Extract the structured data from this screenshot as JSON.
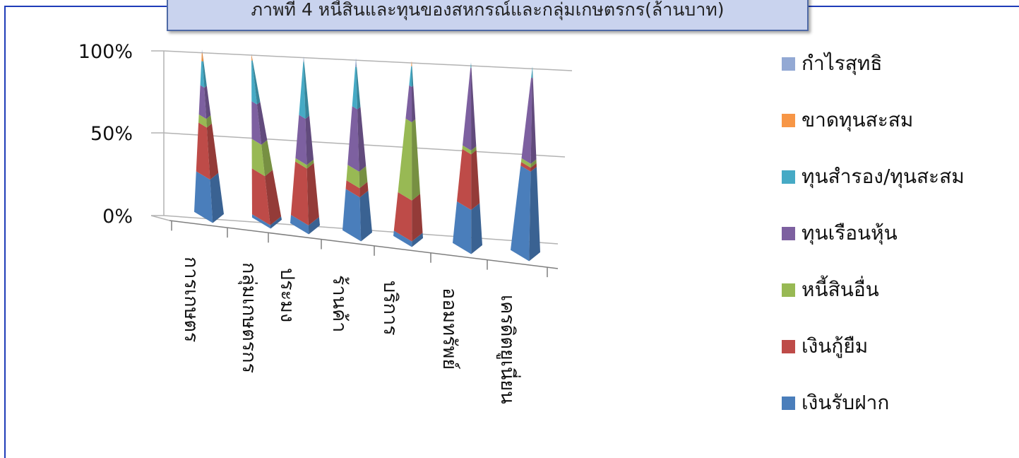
{
  "chart_data": {
    "type": "bar",
    "title": "ภาพที่ 4 หนี้สินและทุนของสหกรณ์และกลุ่มเกษตรกร(ล้านบาท)",
    "stacked": "percent",
    "style": "3d-pyramid",
    "y_ticks": [
      "100%",
      "50%",
      "0%"
    ],
    "ylim": [
      0,
      100
    ],
    "grid": true,
    "legend_position": "right",
    "categories": [
      "การเกษตร",
      "กลุ่มเกษตรกร",
      "ประมง",
      "ร้านค้า",
      "บริการ",
      "ออมทรัพย์",
      "เครดิตยูเนี่ยน"
    ],
    "series": [
      {
        "name": "เงินรับฝาก",
        "color": "#4a7ebb",
        "values": [
          25,
          2,
          5,
          24,
          3,
          23,
          46
        ]
      },
      {
        "name": "เงินกู้ยืม",
        "color": "#be4b48",
        "values": [
          30,
          28,
          32,
          5,
          22,
          29,
          2
        ]
      },
      {
        "name": "หนี้สินอื่น",
        "color": "#98b954",
        "values": [
          5,
          18,
          2,
          9,
          42,
          2,
          2
        ]
      },
      {
        "name": "ทุนเรือนหุ้น",
        "color": "#7d60a0",
        "values": [
          18,
          23,
          26,
          34,
          19,
          43,
          44
        ]
      },
      {
        "name": "ทุนสำรอง/ทุนสะสม",
        "color": "#46aac5",
        "values": [
          15,
          25,
          32,
          23,
          11,
          2,
          6
        ]
      },
      {
        "name": "ขาดทุนสะสม",
        "color": "#f79646",
        "values": [
          5,
          3,
          0,
          0,
          3,
          0,
          0
        ]
      },
      {
        "name": "กำไรสุทธิ",
        "color": "#93a9d4",
        "values": [
          2,
          1,
          3,
          5,
          0,
          1,
          0
        ]
      }
    ]
  },
  "legend_order": [
    "กำไรสุทธิ",
    "ขาดทุนสะสม",
    "ทุนสำรอง/ทุนสะสม",
    "ทุนเรือนหุ้น",
    "หนี้สินอื่น",
    "เงินกู้ยืม",
    "เงินรับฝาก"
  ],
  "colors": {
    "frame": "#1f3cb8",
    "title_box": "#c9d3ee",
    "grid": "#b3b3b3"
  }
}
